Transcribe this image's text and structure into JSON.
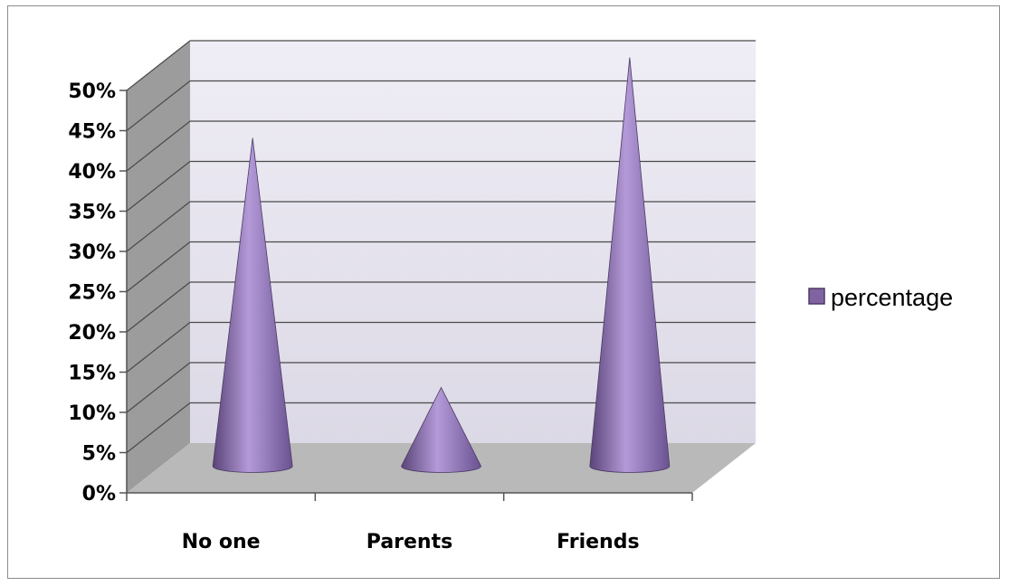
{
  "chart_data": {
    "type": "bar",
    "subtype": "3d-cone",
    "categories": [
      "No one",
      "Parents",
      "Friends"
    ],
    "series": [
      {
        "name": "percentage",
        "values": [
          41,
          10,
          51
        ],
        "color": "#8064a2"
      }
    ],
    "ylim": [
      0,
      50
    ],
    "ytick_step": 5,
    "ytick_labels": [
      "0%",
      "5%",
      "10%",
      "15%",
      "20%",
      "25%",
      "30%",
      "35%",
      "40%",
      "45%",
      "50%"
    ],
    "grid": true,
    "legend": {
      "position": "right",
      "label": "percentage"
    },
    "colors": {
      "wall": "#e8e6f0",
      "side_wall": "#9a9a9a",
      "floor": "#b8b8b8",
      "grid": "#4a4a4a"
    }
  }
}
